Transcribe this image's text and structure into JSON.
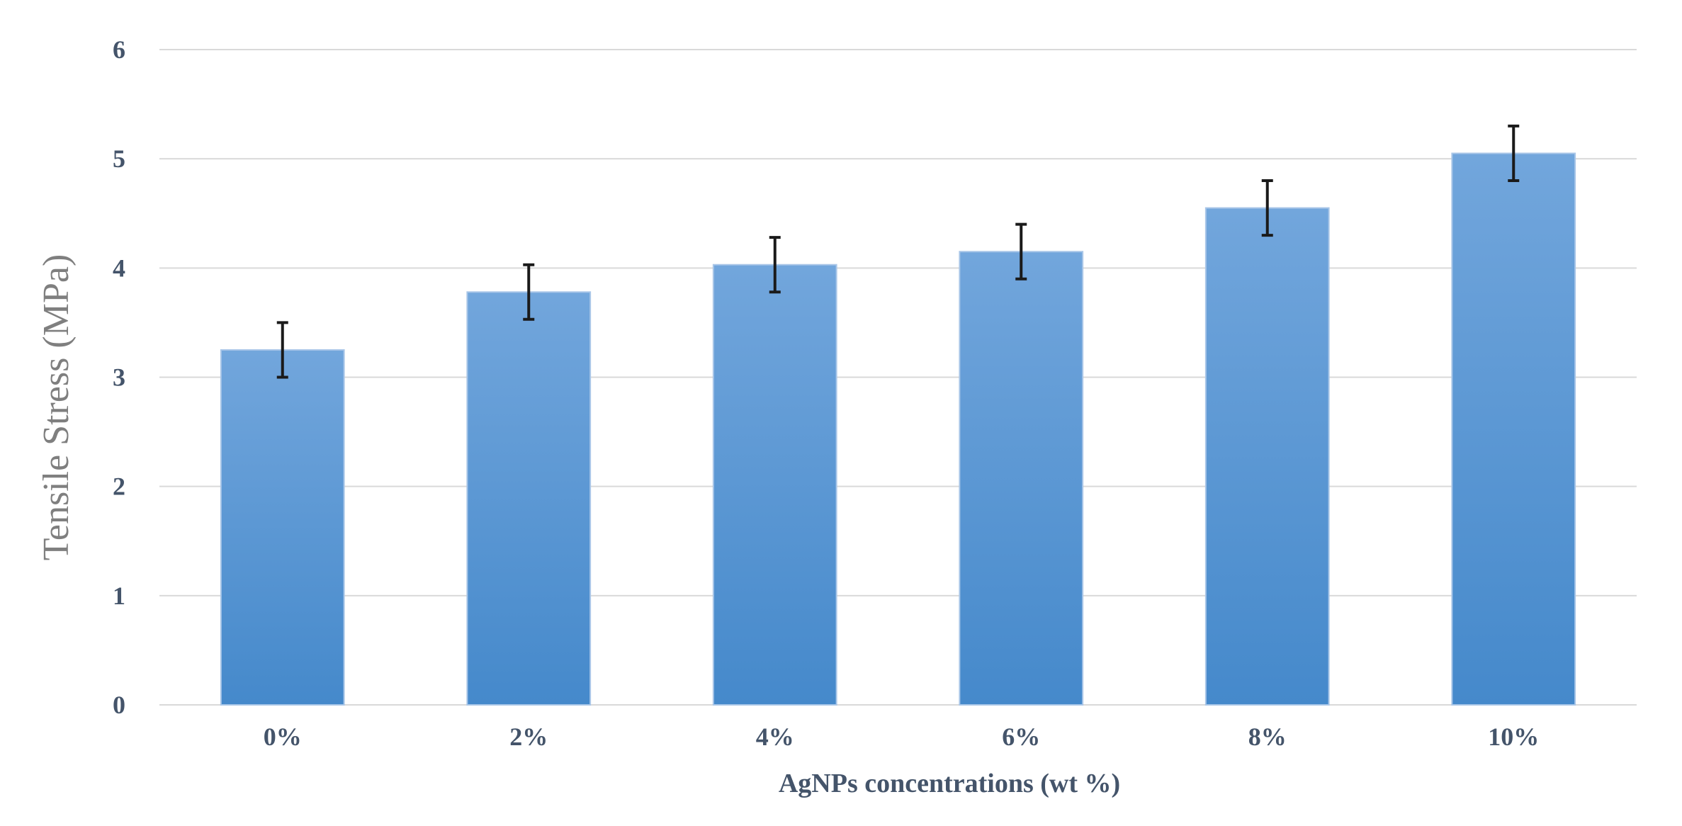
{
  "chart_data": {
    "type": "bar",
    "title": "",
    "xlabel": "AgNPs concentrations (wt %)",
    "ylabel": "Tensile Stress (MPa)",
    "categories": [
      "0%",
      "2%",
      "4%",
      "6%",
      "8%",
      "10%"
    ],
    "values": [
      3.25,
      3.78,
      4.03,
      4.15,
      4.55,
      5.05
    ],
    "error": [
      0.25,
      0.25,
      0.25,
      0.25,
      0.25,
      0.25
    ],
    "ylim": [
      0,
      6
    ],
    "yticks": [
      0,
      1,
      2,
      3,
      4,
      5,
      6
    ],
    "ytick_labels": [
      "0",
      "1",
      "2",
      "3",
      "4",
      "5",
      "6"
    ],
    "grid": true,
    "legend": "none",
    "colors": {
      "bar_top": "#72a6dc",
      "bar_bottom": "#4589cb",
      "bar_edge": "#a9c6e8",
      "grid": "#d9d9d9",
      "error_bar": "#1a1a1a",
      "tick_text": "#44546a",
      "ylabel_text": "#7f7f7f"
    }
  }
}
